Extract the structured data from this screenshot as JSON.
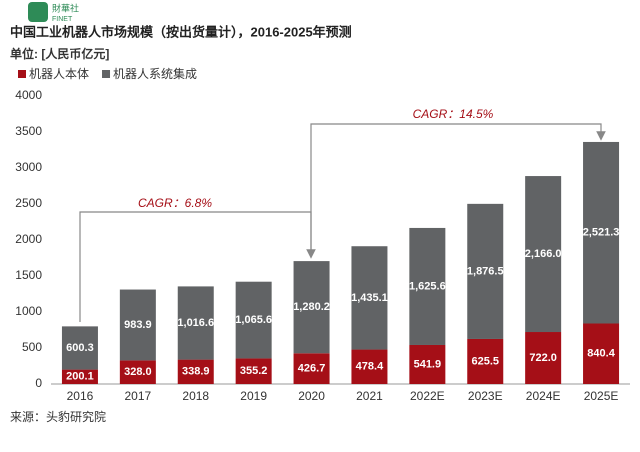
{
  "logo": {
    "name": "財華社",
    "sub": "FINET"
  },
  "chart_data": {
    "type": "stacked_bar",
    "title": "中国工业机器人市场规模（按出货量计），2016-2025年预测",
    "subtitle": "单位: [人民币亿元]",
    "source": "来源：头豹研究院",
    "annotations": [
      "CAGR：6.8%",
      "CAGR：14.5%"
    ],
    "categories": [
      "2016",
      "2017",
      "2018",
      "2019",
      "2020",
      "2021",
      "2022E",
      "2023E",
      "2024E",
      "2025E"
    ],
    "series": [
      {
        "name": "机器人本体",
        "color": "#a50f17",
        "values": [
          200.1,
          328.0,
          338.9,
          355.2,
          426.7,
          478.4,
          541.9,
          625.5,
          722.0,
          840.4
        ],
        "value_labels": [
          "200.1",
          "328.0",
          "338.9",
          "355.2",
          "426.7",
          "478.4",
          "541.9",
          "625.5",
          "722.0",
          "840.4"
        ]
      },
      {
        "name": "机器人系统集成",
        "color": "#616365",
        "values": [
          600.3,
          983.9,
          1016.6,
          1065.6,
          1280.2,
          1435.1,
          1625.6,
          1876.5,
          2166.0,
          2521.3
        ],
        "value_labels": [
          "600.3",
          "983.9",
          "1,016.6",
          "1,065.6",
          "1,280.2",
          "1,435.1",
          "1,625.6",
          "1,876.5",
          "2,166.0",
          "2,521.3"
        ]
      }
    ],
    "ylim": [
      0,
      4000
    ],
    "yticks": [
      0,
      500,
      1000,
      1500,
      2000,
      2500,
      3000,
      3500,
      4000
    ],
    "grid": false,
    "legend": "top-left"
  }
}
